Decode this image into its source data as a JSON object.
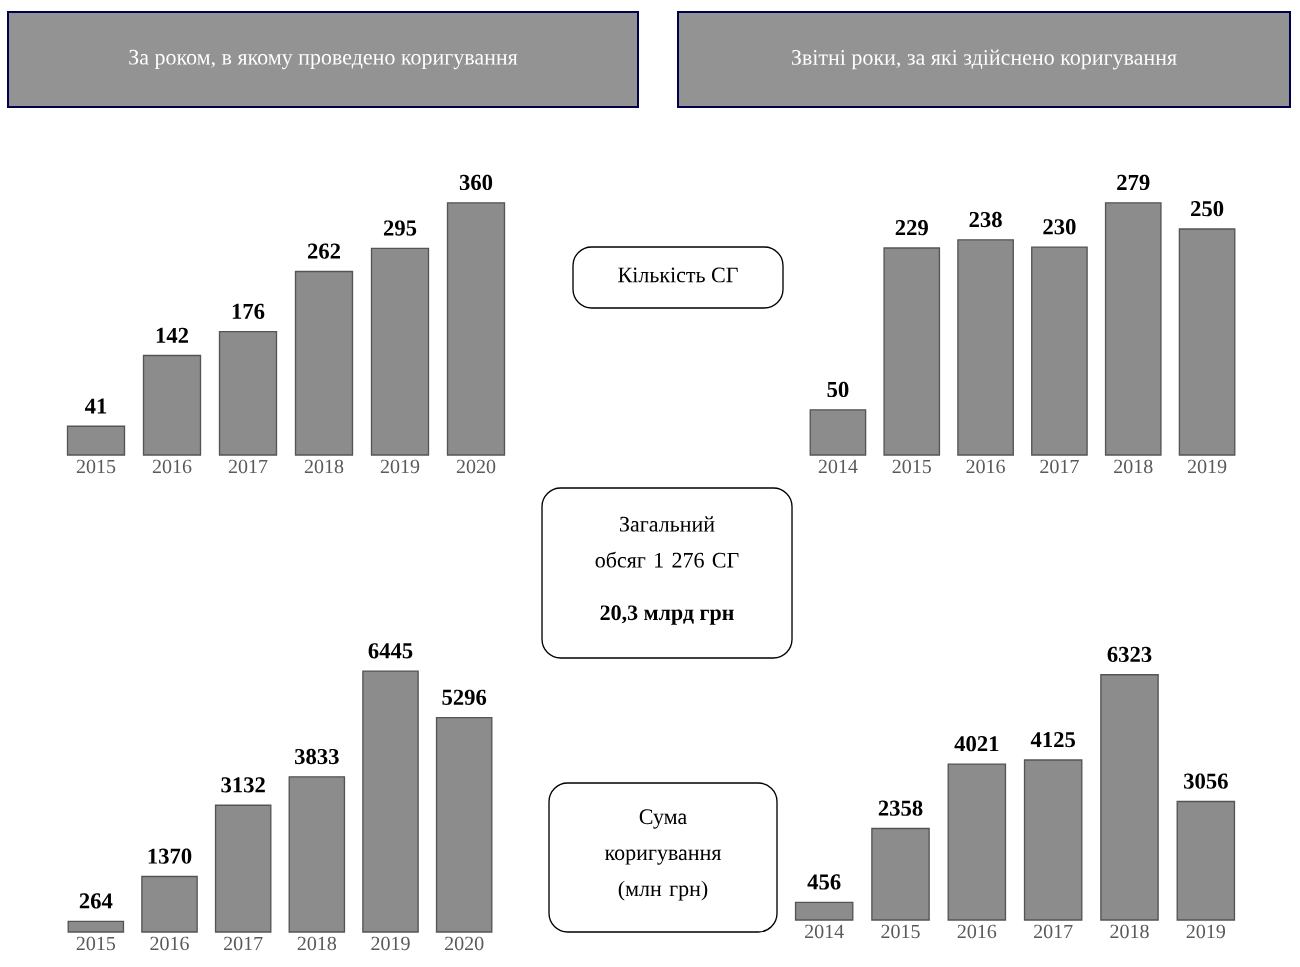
{
  "chart_data": [
    {
      "type": "bar",
      "title": "За роком, в якому проведено коригування",
      "annotations": [
        "Кількість СГ"
      ],
      "categories": [
        "2015",
        "2016",
        "2017",
        "2018",
        "2019",
        "2020"
      ],
      "values": [
        41,
        142,
        176,
        262,
        295,
        360
      ],
      "color": "#8c8c8c",
      "data_labels": true
    },
    {
      "type": "bar",
      "title": "Звітні роки, за які здійснено коригування",
      "categories": [
        "2014",
        "2015",
        "2016",
        "2017",
        "2018",
        "2019"
      ],
      "values": [
        50,
        229,
        238,
        230,
        279,
        250
      ],
      "color": "#8c8c8c",
      "data_labels": true
    },
    {
      "type": "bar",
      "annotations": [
        "Загальний обсяг 1 276 СГ",
        "20,3 млрд грн",
        "Сума коригування (млн грн)"
      ],
      "categories": [
        "2015",
        "2016",
        "2017",
        "2018",
        "2019",
        "2020"
      ],
      "values": [
        264,
        1370,
        3132,
        3833,
        6445,
        5296
      ],
      "color": "#8c8c8c",
      "data_labels": true
    },
    {
      "type": "bar",
      "categories": [
        "2014",
        "2015",
        "2016",
        "2017",
        "2018",
        "2019"
      ],
      "values": [
        456,
        2358,
        4021,
        4125,
        6323,
        3056
      ],
      "color": "#8c8c8c",
      "data_labels": true
    }
  ]
}
